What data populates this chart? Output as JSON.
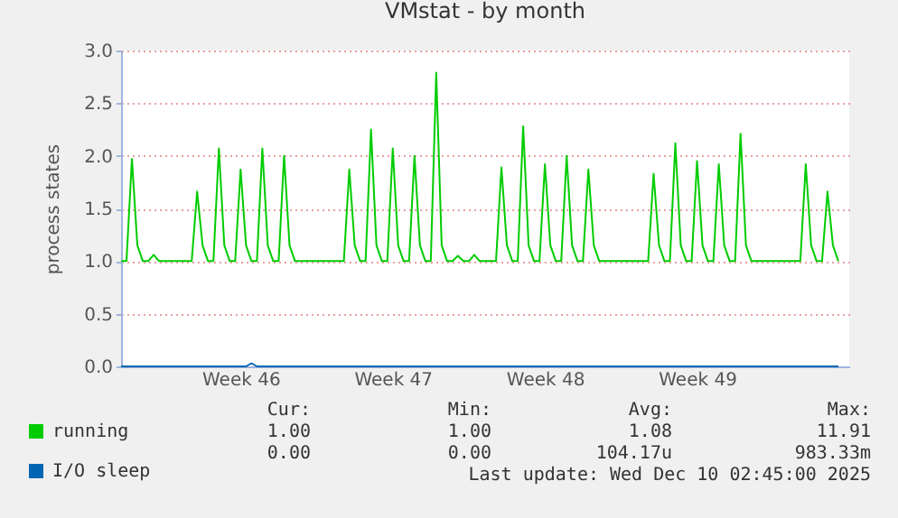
{
  "chart_data": {
    "type": "line",
    "title": "VMstat - by month",
    "ylabel": "process states",
    "categories": [
      null,
      null,
      null,
      null,
      null,
      null,
      null,
      null,
      null,
      null,
      null,
      null,
      null,
      null,
      null,
      null,
      null,
      null,
      null,
      null,
      null,
      null,
      "Week 46",
      null,
      null,
      null,
      null,
      null,
      null,
      null,
      null,
      null,
      null,
      null,
      null,
      null,
      null,
      null,
      null,
      null,
      null,
      null,
      null,
      null,
      null,
      null,
      null,
      null,
      null,
      null,
      "Week 47",
      null,
      null,
      null,
      null,
      null,
      null,
      null,
      null,
      null,
      null,
      null,
      null,
      null,
      null,
      null,
      null,
      null,
      null,
      null,
      null,
      null,
      null,
      null,
      null,
      null,
      null,
      null,
      "Week 48",
      null,
      null,
      null,
      null,
      null,
      null,
      null,
      null,
      null,
      null,
      null,
      null,
      null,
      null,
      null,
      null,
      null,
      null,
      null,
      null,
      null,
      null,
      null,
      null,
      null,
      null,
      null,
      "Week 49",
      null,
      null,
      null,
      null,
      null,
      null,
      null,
      null,
      null,
      null,
      null,
      null,
      null,
      null,
      null,
      null,
      null,
      null,
      null,
      null,
      null,
      null,
      null,
      null,
      null,
      null,
      null,
      null
    ],
    "ylim": [
      0,
      3
    ],
    "yticks": [
      {
        "value": 0,
        "label": "0.0"
      },
      {
        "value": 0.5,
        "label": "0.5"
      },
      {
        "value": 1,
        "label": "1.0"
      },
      {
        "value": 1.5,
        "label": "1.5"
      },
      {
        "value": 2,
        "label": "2.0"
      },
      {
        "value": 2.5,
        "label": "2.5"
      },
      {
        "value": 3,
        "label": "3.0"
      }
    ],
    "grid": "y",
    "legend": "bottom left",
    "marker": "none",
    "line_style": "solid",
    "series": [
      {
        "name": "running",
        "color": "#00cc00",
        "values": [
          1.0,
          1.0,
          1.97,
          1.15,
          1.0,
          1.0,
          1.06,
          1.0,
          1.0,
          1.0,
          1.0,
          1.0,
          1.0,
          1.0,
          1.66,
          1.15,
          1.0,
          1.0,
          2.07,
          1.15,
          1.0,
          1.0,
          1.87,
          1.15,
          1.0,
          1.0,
          2.07,
          1.15,
          1.0,
          1.0,
          2.0,
          1.15,
          1.0,
          1.0,
          1.0,
          1.0,
          1.0,
          1.0,
          1.0,
          1.0,
          1.0,
          1.0,
          1.87,
          1.15,
          1.0,
          1.0,
          2.25,
          1.15,
          1.0,
          1.0,
          2.07,
          1.15,
          1.0,
          1.0,
          2.0,
          1.15,
          1.0,
          1.0,
          2.79,
          1.15,
          1.0,
          1.0,
          1.05,
          1.0,
          1.0,
          1.06,
          1.0,
          1.0,
          1.0,
          1.0,
          1.89,
          1.15,
          1.0,
          1.0,
          2.28,
          1.15,
          1.0,
          1.0,
          1.92,
          1.15,
          1.0,
          1.0,
          2.0,
          1.15,
          1.0,
          1.0,
          1.87,
          1.15,
          1.0,
          1.0,
          1.0,
          1.0,
          1.0,
          1.0,
          1.0,
          1.0,
          1.0,
          1.0,
          1.83,
          1.15,
          1.0,
          1.0,
          2.12,
          1.15,
          1.0,
          1.0,
          1.95,
          1.15,
          1.0,
          1.0,
          1.92,
          1.15,
          1.0,
          1.0,
          2.21,
          1.15,
          1.0,
          1.0,
          1.0,
          1.0,
          1.0,
          1.0,
          1.0,
          1.0,
          1.0,
          1.0,
          1.92,
          1.15,
          1.0,
          1.0,
          1.66,
          1.15,
          1.0,
          null,
          null
        ]
      },
      {
        "name": "I/O sleep",
        "color": "#0066b3",
        "values": [
          0,
          0,
          0,
          0,
          0,
          0,
          0,
          0,
          0,
          0,
          0,
          0,
          0,
          0,
          0,
          0,
          0,
          0,
          0,
          0,
          0,
          0,
          0,
          0,
          0.03,
          0,
          0,
          0,
          0,
          0,
          0,
          0,
          0,
          0,
          0,
          0,
          0,
          0,
          0,
          0,
          0,
          0,
          0,
          0,
          0,
          0,
          0,
          0,
          0,
          0,
          0,
          0,
          0,
          0,
          0,
          0,
          0,
          0,
          0,
          0,
          0,
          0,
          0,
          0,
          0,
          0,
          0,
          0,
          0,
          0,
          0,
          0,
          0,
          0,
          0,
          0,
          0,
          0,
          0,
          0,
          0,
          0,
          0,
          0,
          0,
          0,
          0,
          0,
          0,
          0,
          0,
          0,
          0,
          0,
          0,
          0,
          0,
          0,
          0,
          0,
          0,
          0,
          0,
          0,
          0,
          0,
          0,
          0,
          0,
          0,
          0,
          0,
          0,
          0,
          0,
          0,
          0,
          0,
          0,
          0,
          0,
          0,
          0,
          0,
          0,
          0,
          0,
          0,
          0,
          0,
          0,
          0,
          0,
          null,
          null
        ]
      }
    ],
    "annotations": [
      "Cur:",
      "Min:",
      "Avg:",
      "Max:",
      "1.00",
      "1.00",
      "1.08",
      "11.91",
      "0.00",
      "0.00",
      "104.17u",
      "983.33m",
      "Last update: Wed Dec 10 02:45:00 2025"
    ]
  }
}
